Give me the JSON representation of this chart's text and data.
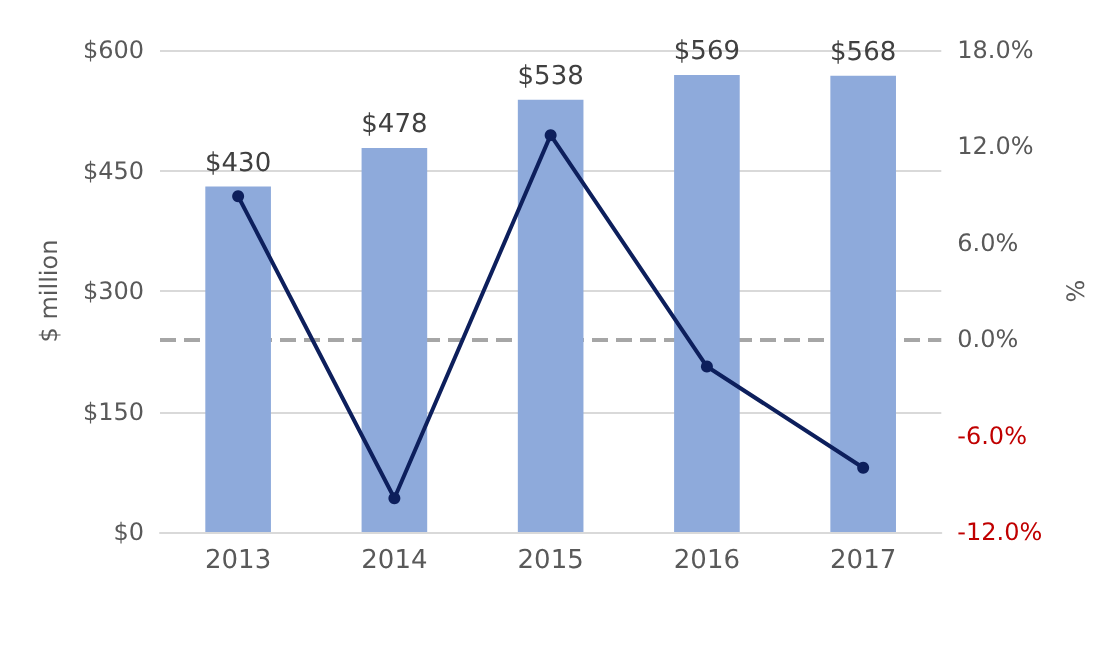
{
  "chart_data": {
    "type": "bar",
    "categories": [
      "2013",
      "2014",
      "2015",
      "2016",
      "2017"
    ],
    "ylabel": "$ million",
    "y2label": "%",
    "series": [
      {
        "color": "#8eaadb",
        "values": [
          430,
          478,
          538,
          569,
          568
        ],
        "value_labels": [
          "$430",
          "$478",
          "$538",
          "$569",
          "$568"
        ]
      },
      {
        "type": "line",
        "axis": "y2",
        "color": "#0d1f5c",
        "values": [
          8.9,
          -9.9,
          12.7,
          -1.7,
          -8.0
        ]
      }
    ],
    "ylim": [
      0,
      600
    ],
    "yticks": [
      {
        "value": 0,
        "label": "$0"
      },
      {
        "value": 150,
        "label": "$150"
      },
      {
        "value": 300,
        "label": "$300"
      },
      {
        "value": 450,
        "label": "$450"
      },
      {
        "value": 600,
        "label": "$600"
      }
    ],
    "y2lim": [
      -12,
      18
    ],
    "y2ticks": [
      {
        "value": -12,
        "label": "-12.0%"
      },
      {
        "value": -6,
        "label": "-6.0%"
      },
      {
        "value": 0,
        "label": "0.0%"
      },
      {
        "value": 6,
        "label": "6.0%"
      },
      {
        "value": 12,
        "label": "12.0%"
      },
      {
        "value": 18,
        "label": "18.0%"
      }
    ],
    "ref_lines": [
      {
        "axis": "y2",
        "value": 0,
        "color": "#a6a6a6",
        "line_style": "dashed"
      }
    ],
    "grid": "y",
    "marker": "circle",
    "line_style": "solid"
  }
}
